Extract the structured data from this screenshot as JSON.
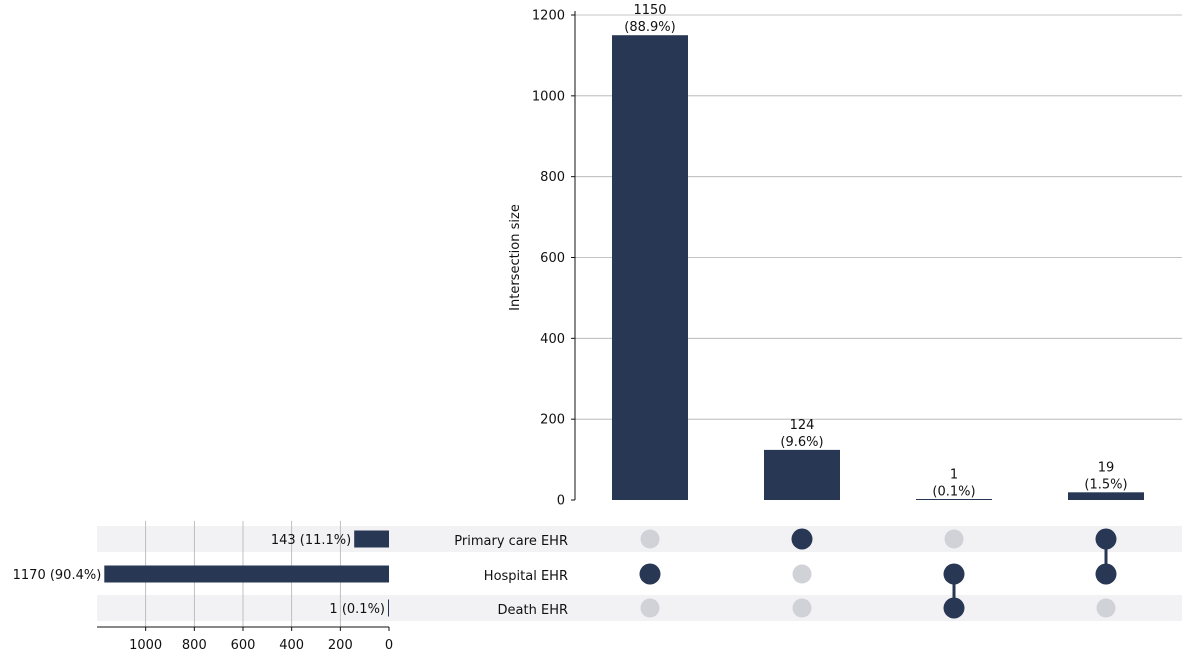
{
  "chart_data": {
    "type": "bar",
    "subtype": "upset",
    "colors": {
      "bar": "#283754",
      "dot_active": "#283754",
      "dot_inactive": "#d0d2d8",
      "stripe": "#f2f2f4",
      "grid": "#b0b0b0"
    },
    "ylabel": "Intersection size",
    "ylim": [
      0,
      1200
    ],
    "yticks": [
      "0",
      "200",
      "400",
      "600",
      "800",
      "1000",
      "1200"
    ],
    "sets": [
      {
        "name": "Primary care EHR",
        "size": 143,
        "label": "143 (11.1%)"
      },
      {
        "name": "Hospital EHR",
        "size": 1170,
        "label": "1170 (90.4%)"
      },
      {
        "name": "Death EHR",
        "size": 1,
        "label": "1 (0.1%)"
      }
    ],
    "set_size_ticks": [
      "1000",
      "800",
      "600",
      "400",
      "200",
      "0"
    ],
    "set_size_xlim": [
      0,
      1200
    ],
    "intersections": [
      {
        "members": [
          false,
          true,
          false
        ],
        "value": 1150,
        "count_label": "1150",
        "pct_label": "(88.9%)"
      },
      {
        "members": [
          true,
          false,
          false
        ],
        "value": 124,
        "count_label": "124",
        "pct_label": "(9.6%)"
      },
      {
        "members": [
          false,
          true,
          true
        ],
        "value": 1,
        "count_label": "1",
        "pct_label": "(0.1%)"
      },
      {
        "members": [
          true,
          true,
          false
        ],
        "value": 19,
        "count_label": "19",
        "pct_label": "(1.5%)"
      }
    ],
    "grid": true
  }
}
